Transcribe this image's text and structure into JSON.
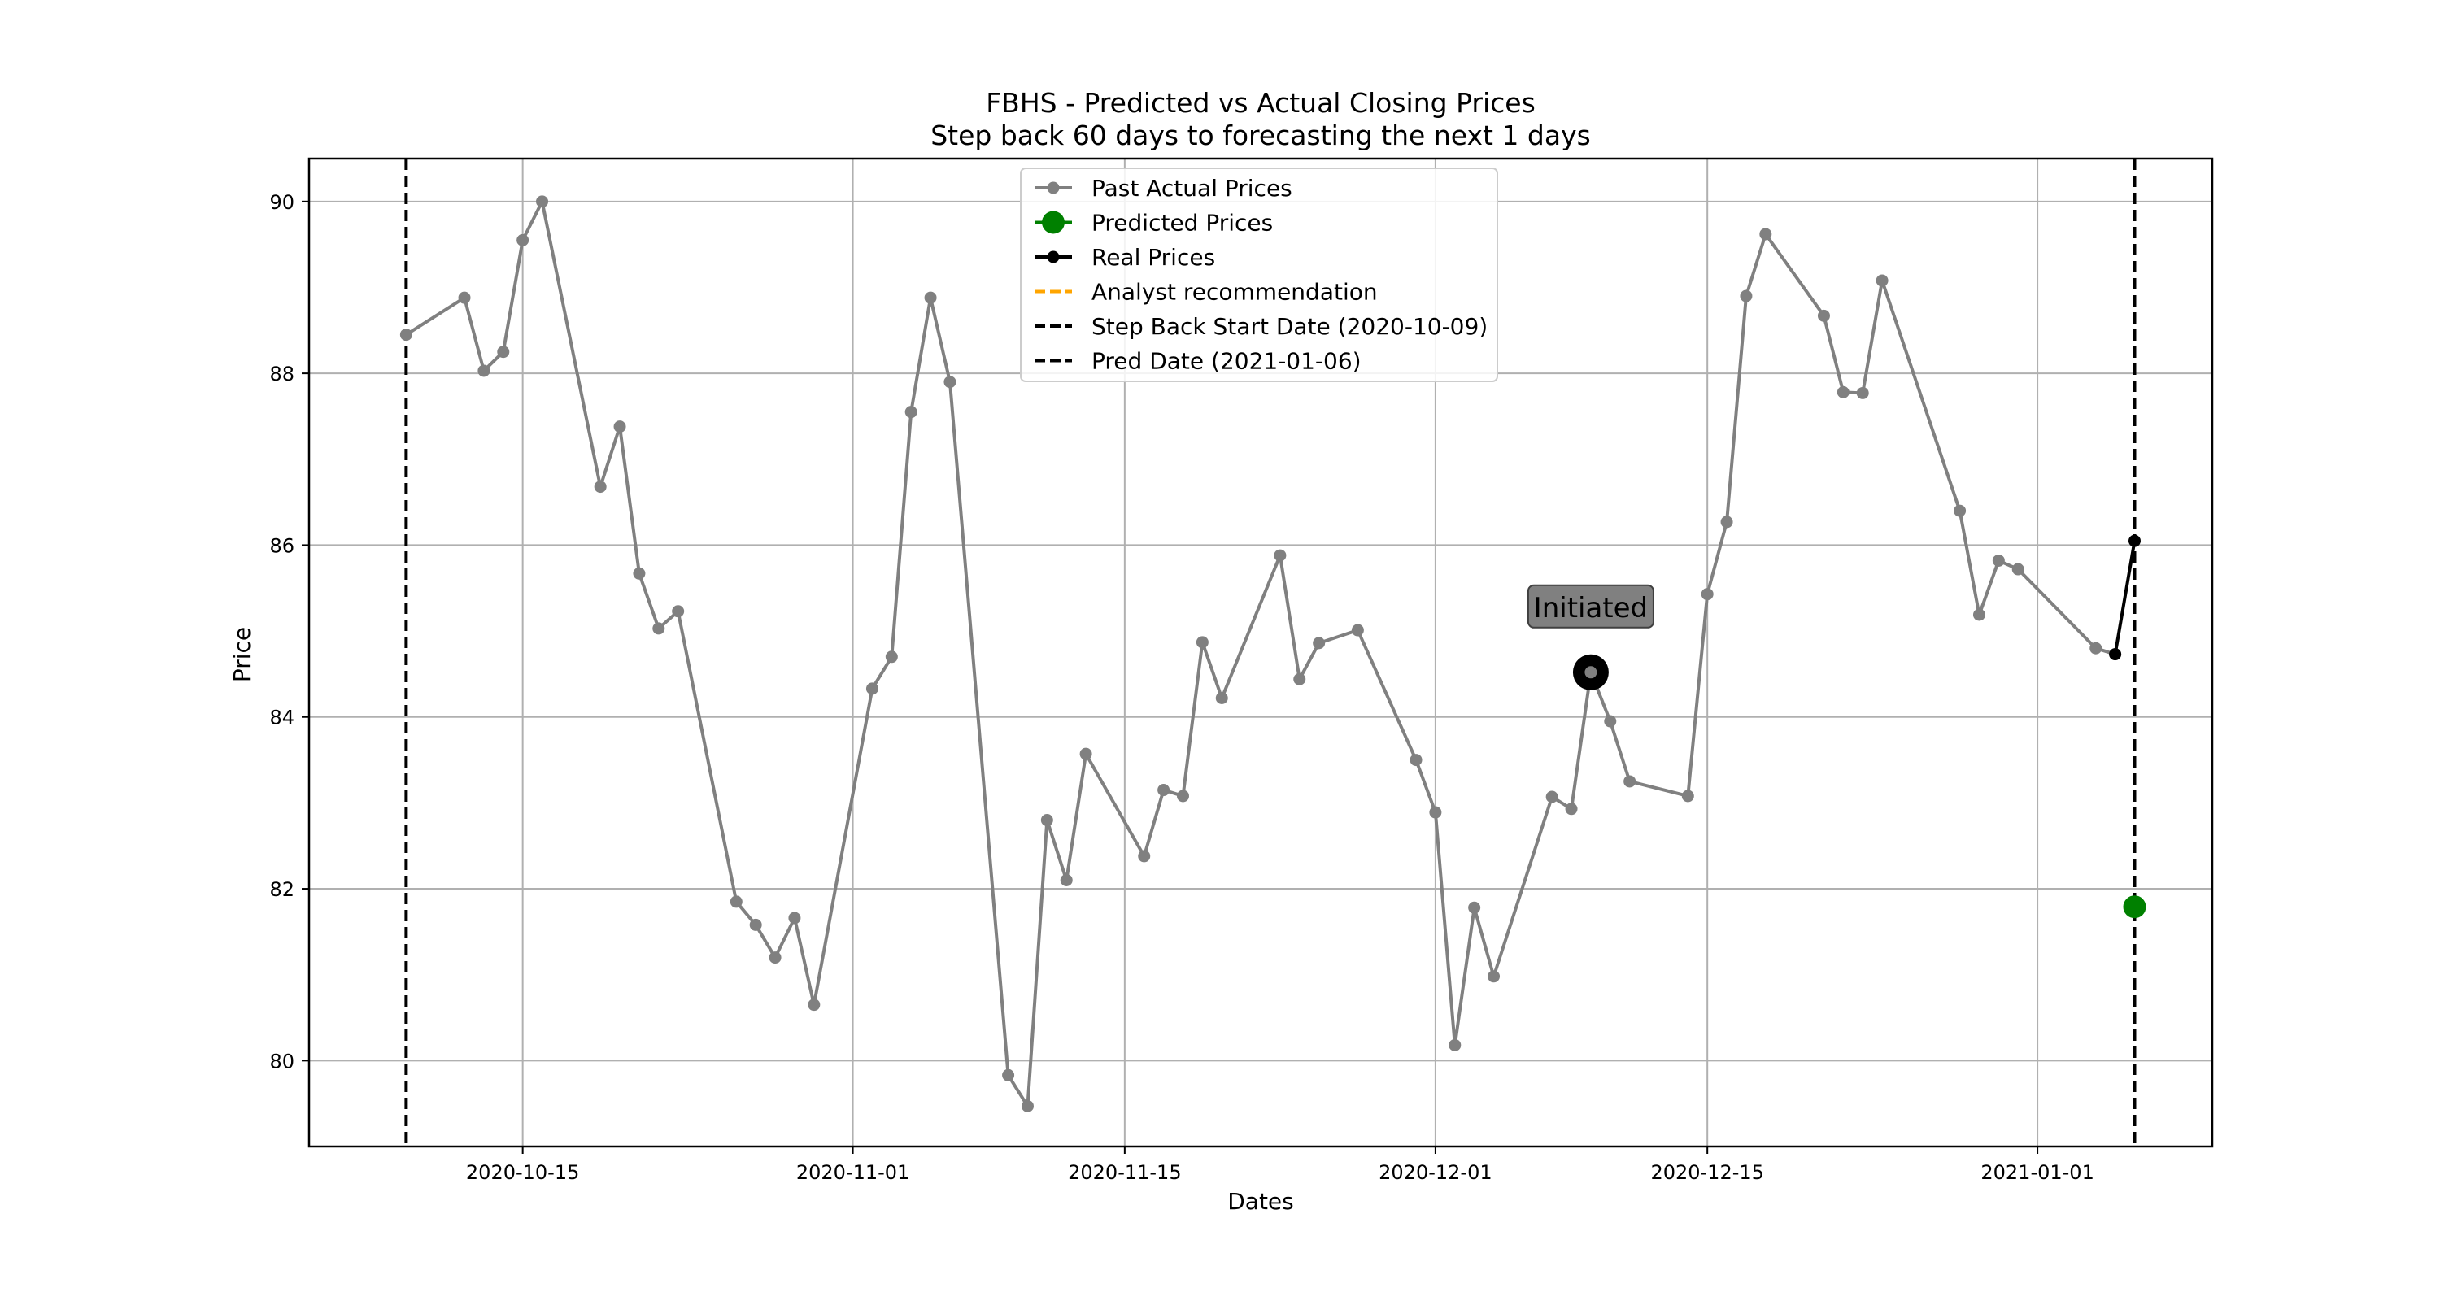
{
  "chart_data": {
    "type": "line",
    "title": "FBHS - Predicted vs Actual Closing Prices",
    "subtitle": "Step back 60 days to forecasting the next 1 days",
    "xlabel": "Dates",
    "ylabel": "Price",
    "xlim": [
      "2020-10-04",
      "2021-01-10"
    ],
    "ylim": [
      79.0,
      90.5
    ],
    "x_ticks": [
      "2020-10-15",
      "2020-11-01",
      "2020-11-15",
      "2020-12-01",
      "2020-12-15",
      "2021-01-01"
    ],
    "y_ticks": [
      80,
      82,
      84,
      86,
      88,
      90
    ],
    "grid": true,
    "legend_position": "top-center",
    "series": [
      {
        "name": "Past Actual Prices",
        "color": "#808080",
        "marker": "circle",
        "points": [
          [
            "2020-10-09",
            88.45
          ],
          [
            "2020-10-12",
            88.88
          ],
          [
            "2020-10-13",
            88.03
          ],
          [
            "2020-10-14",
            88.25
          ],
          [
            "2020-10-15",
            89.55
          ],
          [
            "2020-10-16",
            90.0
          ],
          [
            "2020-10-19",
            86.68
          ],
          [
            "2020-10-20",
            87.38
          ],
          [
            "2020-10-21",
            85.67
          ],
          [
            "2020-10-22",
            85.03
          ],
          [
            "2020-10-23",
            85.23
          ],
          [
            "2020-10-26",
            81.85
          ],
          [
            "2020-10-27",
            81.58
          ],
          [
            "2020-10-28",
            81.2
          ],
          [
            "2020-10-29",
            81.66
          ],
          [
            "2020-10-30",
            80.65
          ],
          [
            "2020-11-02",
            84.33
          ],
          [
            "2020-11-03",
            84.7
          ],
          [
            "2020-11-04",
            87.55
          ],
          [
            "2020-11-05",
            88.88
          ],
          [
            "2020-11-06",
            87.9
          ],
          [
            "2020-11-09",
            79.83
          ],
          [
            "2020-11-10",
            79.47
          ],
          [
            "2020-11-11",
            82.8
          ],
          [
            "2020-11-12",
            82.1
          ],
          [
            "2020-11-13",
            83.57
          ],
          [
            "2020-11-16",
            82.38
          ],
          [
            "2020-11-17",
            83.15
          ],
          [
            "2020-11-18",
            83.08
          ],
          [
            "2020-11-19",
            84.87
          ],
          [
            "2020-11-20",
            84.22
          ],
          [
            "2020-11-23",
            85.88
          ],
          [
            "2020-11-24",
            84.44
          ],
          [
            "2020-11-25",
            84.86
          ],
          [
            "2020-11-27",
            85.01
          ],
          [
            "2020-11-30",
            83.5
          ],
          [
            "2020-12-01",
            82.89
          ],
          [
            "2020-12-02",
            80.18
          ],
          [
            "2020-12-03",
            81.78
          ],
          [
            "2020-12-04",
            80.98
          ],
          [
            "2020-12-07",
            83.07
          ],
          [
            "2020-12-08",
            82.93
          ],
          [
            "2020-12-09",
            84.52
          ],
          [
            "2020-12-10",
            83.95
          ],
          [
            "2020-12-11",
            83.25
          ],
          [
            "2020-12-14",
            83.08
          ],
          [
            "2020-12-15",
            85.43
          ],
          [
            "2020-12-16",
            86.27
          ],
          [
            "2020-12-17",
            88.9
          ],
          [
            "2020-12-18",
            89.62
          ],
          [
            "2020-12-21",
            88.67
          ],
          [
            "2020-12-22",
            87.78
          ],
          [
            "2020-12-23",
            87.77
          ],
          [
            "2020-12-24",
            89.08
          ],
          [
            "2020-12-28",
            86.4
          ],
          [
            "2020-12-29",
            85.19
          ],
          [
            "2020-12-30",
            85.82
          ],
          [
            "2020-12-31",
            85.72
          ],
          [
            "2021-01-04",
            84.8
          ],
          [
            "2021-01-05",
            84.73
          ]
        ]
      },
      {
        "name": "Predicted Prices",
        "color": "#008000",
        "marker": "circle-large",
        "points": [
          [
            "2021-01-06",
            81.79
          ]
        ]
      },
      {
        "name": "Real Prices",
        "color": "#000000",
        "marker": "circle",
        "points": [
          [
            "2021-01-05",
            84.73
          ],
          [
            "2021-01-06",
            86.05
          ]
        ]
      }
    ],
    "legend_extra": [
      {
        "name": "Analyst recommendation",
        "color": "#FFA500",
        "style": "dashed"
      },
      {
        "name": "Step Back Start Date (2020-10-09)",
        "color": "#000000",
        "style": "dashed"
      },
      {
        "name": "Pred Date (2021-01-06)",
        "color": "#000000",
        "style": "dashed"
      }
    ],
    "vertical_lines": [
      {
        "x": "2020-10-09",
        "color": "#000000",
        "style": "dashed"
      },
      {
        "x": "2021-01-06",
        "color": "#000000",
        "style": "dashed"
      }
    ],
    "annotations": [
      {
        "text": "Initiated",
        "x": "2020-12-09",
        "y": 84.52,
        "box_color": "#808080"
      }
    ]
  }
}
